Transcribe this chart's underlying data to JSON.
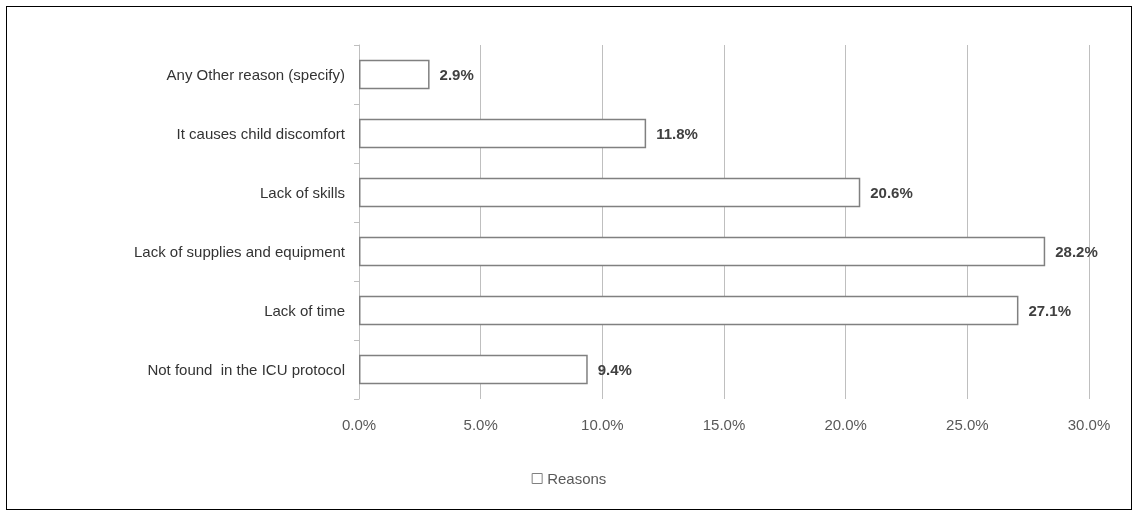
{
  "chart_data": {
    "type": "bar",
    "orientation": "horizontal",
    "categories": [
      "Any Other reason (specify)",
      "It causes child discomfort",
      "Lack of skills",
      "Lack of supplies and equipment",
      "Lack of time",
      "Not found  in the ICU protocol"
    ],
    "series": [
      {
        "name": "Reasons",
        "color": "#ffffff",
        "values": [
          2.9,
          11.8,
          20.6,
          28.2,
          27.1,
          9.4
        ],
        "value_labels": [
          "2.9%",
          "11.8%",
          "20.6%",
          "28.2%",
          "27.1%",
          "9.4%"
        ]
      }
    ],
    "xlim": [
      0,
      30
    ],
    "xticks": [
      {
        "value": 0,
        "label": "0.0%"
      },
      {
        "value": 5,
        "label": "5.0%"
      },
      {
        "value": 10,
        "label": "10.0%"
      },
      {
        "value": 15,
        "label": "15.0%"
      },
      {
        "value": 20,
        "label": "20.0%"
      },
      {
        "value": 25,
        "label": "25.0%"
      },
      {
        "value": 30,
        "label": "30.0%"
      }
    ],
    "grid": "x",
    "legend": "bottom"
  }
}
